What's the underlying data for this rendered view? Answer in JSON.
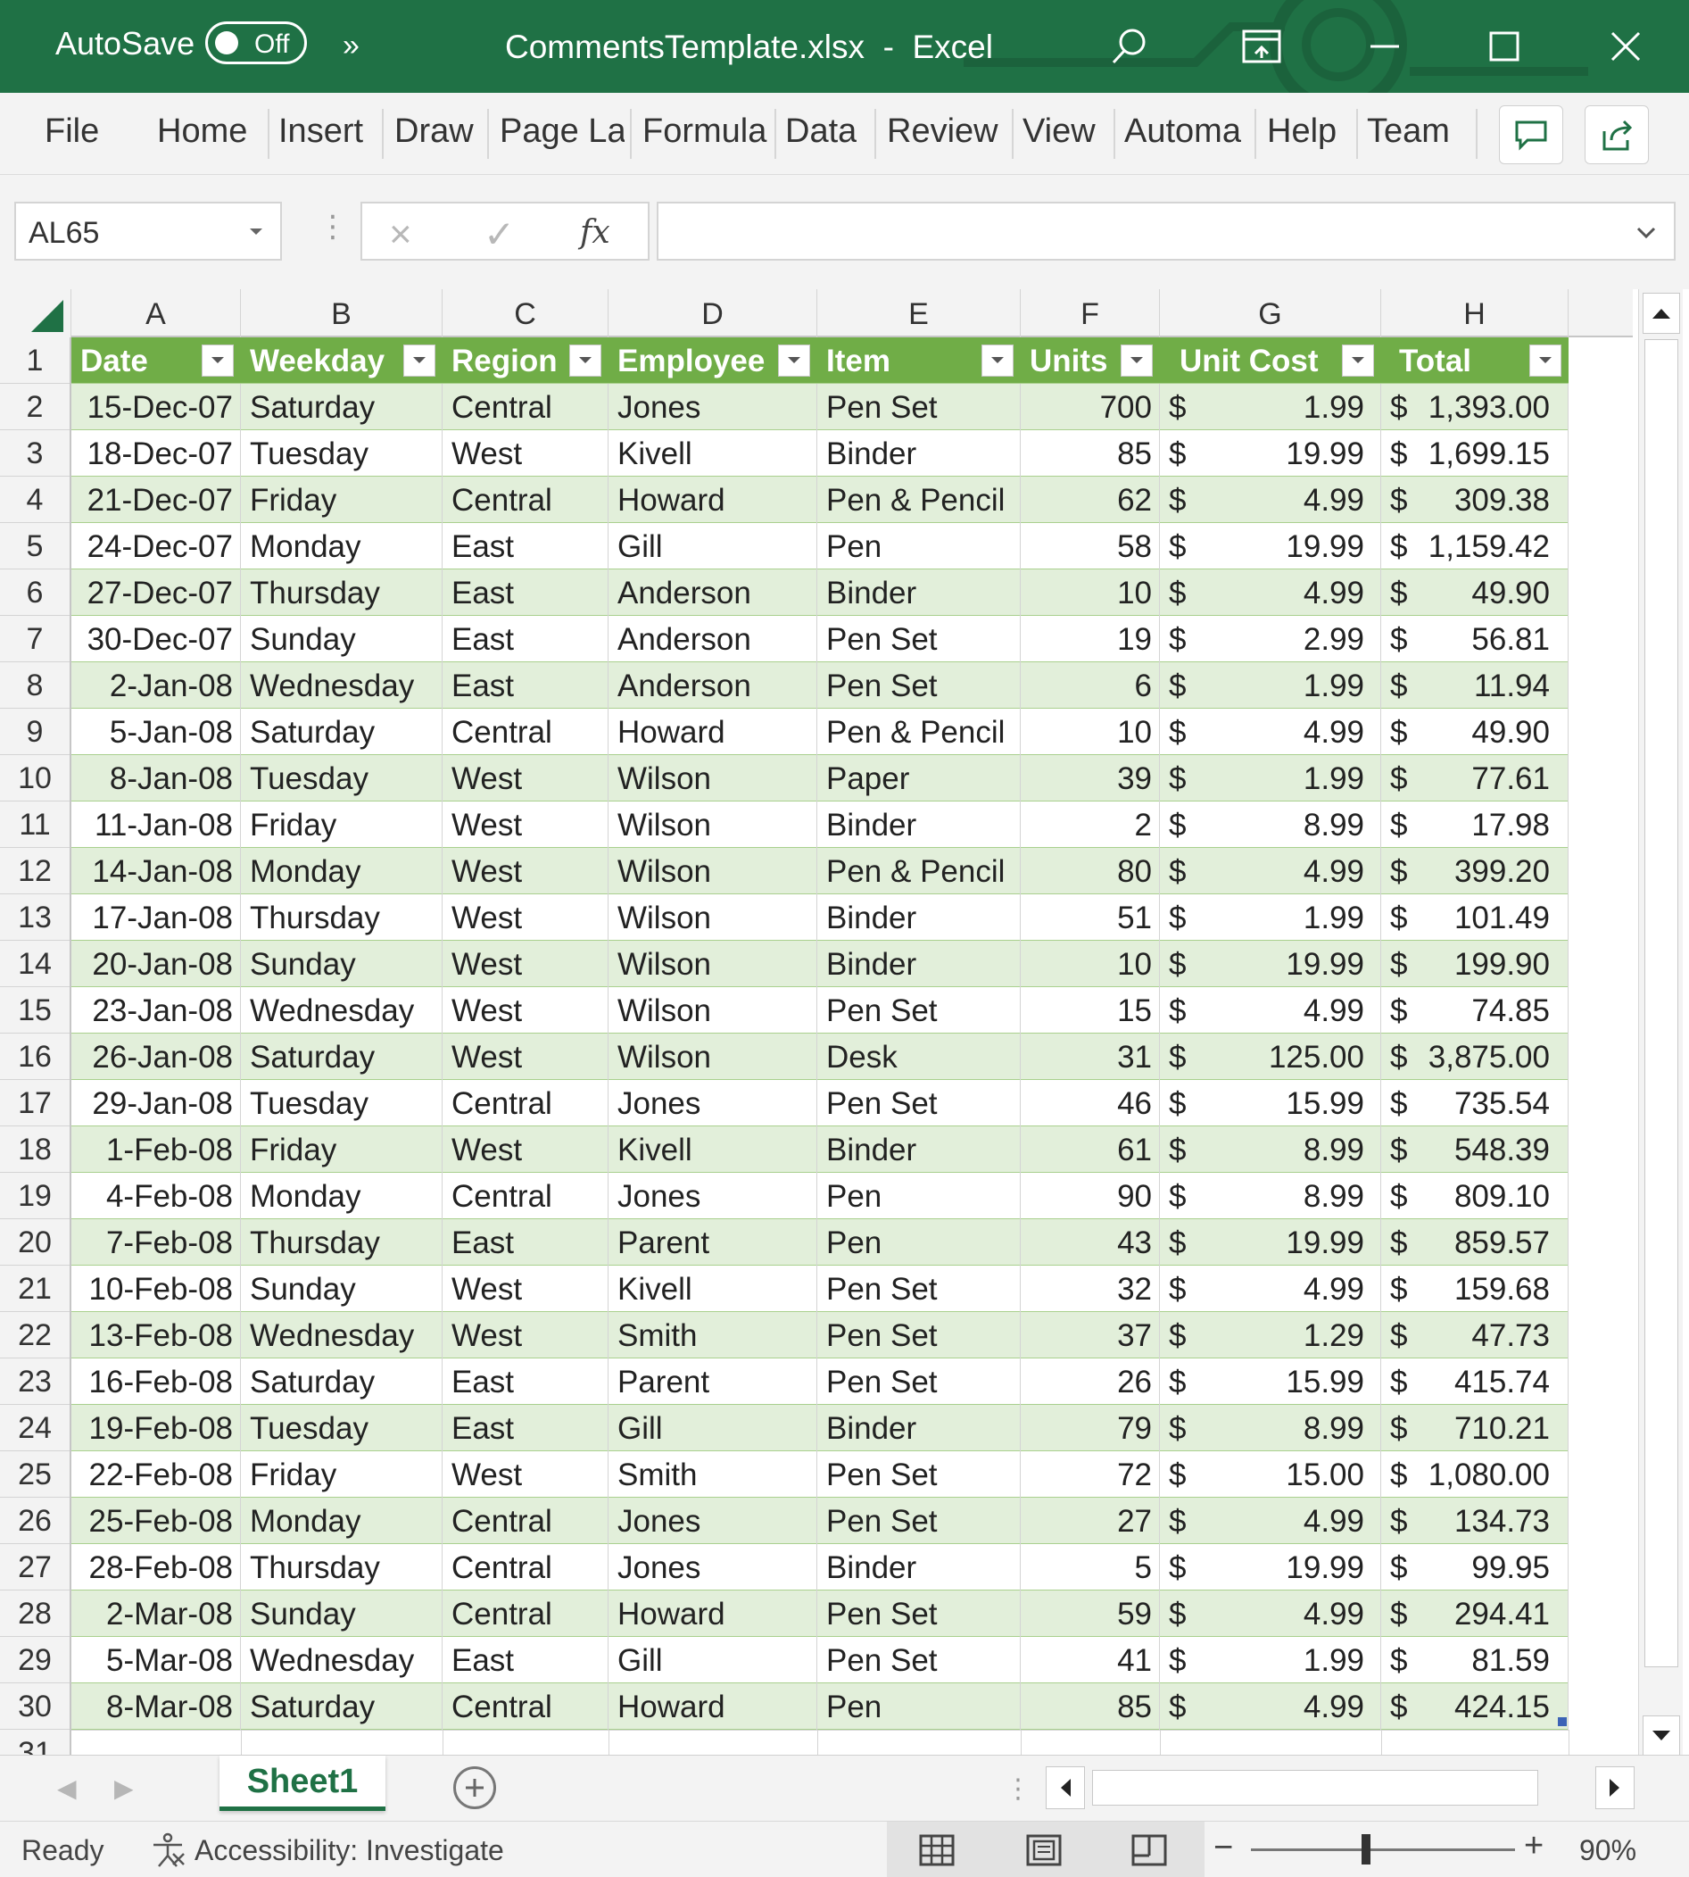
{
  "titlebar": {
    "autosave_label": "AutoSave",
    "autosave_state": "Off",
    "more_chevron": "»",
    "document_title": "CommentsTemplate.xlsx  -  Excel",
    "color": "#1f7145"
  },
  "ribbon": {
    "tabs": [
      "File",
      "Home",
      "Insert",
      "Draw",
      "Page La",
      "Formula",
      "Data",
      "Review",
      "View",
      "Automa",
      "Help",
      "Team"
    ],
    "comment_button_icon": "comment-icon",
    "share_button_icon": "share-icon"
  },
  "formula_bar": {
    "name_box": "AL65",
    "cancel_icon": "×",
    "enter_icon": "✓",
    "fx_label": "fx",
    "formula_value": ""
  },
  "grid": {
    "column_letters": [
      "A",
      "B",
      "C",
      "D",
      "E",
      "F",
      "G",
      "H"
    ],
    "row_numbers": [
      "1",
      "2",
      "3",
      "4",
      "5",
      "6",
      "7",
      "8",
      "9",
      "10",
      "11",
      "12",
      "13",
      "14",
      "15",
      "16",
      "17",
      "18",
      "19",
      "20",
      "21",
      "22",
      "23",
      "24",
      "25",
      "26",
      "27",
      "28",
      "29",
      "30",
      "31"
    ],
    "header_color": "#70ad47",
    "band_color": "#e2efda",
    "table_headers": [
      "Date",
      "Weekday",
      "Region",
      "Employee",
      "Item",
      "Units",
      "Unit Cost",
      "Total"
    ],
    "currency_symbol": "$",
    "rows": [
      [
        "15-Dec-07",
        "Saturday",
        "Central",
        "Jones",
        "Pen Set",
        "700",
        "1.99",
        "1,393.00"
      ],
      [
        "18-Dec-07",
        "Tuesday",
        "West",
        "Kivell",
        "Binder",
        "85",
        "19.99",
        "1,699.15"
      ],
      [
        "21-Dec-07",
        "Friday",
        "Central",
        "Howard",
        "Pen & Pencil",
        "62",
        "4.99",
        "309.38"
      ],
      [
        "24-Dec-07",
        "Monday",
        "East",
        "Gill",
        "Pen",
        "58",
        "19.99",
        "1,159.42"
      ],
      [
        "27-Dec-07",
        "Thursday",
        "East",
        "Anderson",
        "Binder",
        "10",
        "4.99",
        "49.90"
      ],
      [
        "30-Dec-07",
        "Sunday",
        "East",
        "Anderson",
        "Pen Set",
        "19",
        "2.99",
        "56.81"
      ],
      [
        "2-Jan-08",
        "Wednesday",
        "East",
        "Anderson",
        "Pen Set",
        "6",
        "1.99",
        "11.94"
      ],
      [
        "5-Jan-08",
        "Saturday",
        "Central",
        "Howard",
        "Pen & Pencil",
        "10",
        "4.99",
        "49.90"
      ],
      [
        "8-Jan-08",
        "Tuesday",
        "West",
        "Wilson",
        "Paper",
        "39",
        "1.99",
        "77.61"
      ],
      [
        "11-Jan-08",
        "Friday",
        "West",
        "Wilson",
        "Binder",
        "2",
        "8.99",
        "17.98"
      ],
      [
        "14-Jan-08",
        "Monday",
        "West",
        "Wilson",
        "Pen & Pencil",
        "80",
        "4.99",
        "399.20"
      ],
      [
        "17-Jan-08",
        "Thursday",
        "West",
        "Wilson",
        "Binder",
        "51",
        "1.99",
        "101.49"
      ],
      [
        "20-Jan-08",
        "Sunday",
        "West",
        "Wilson",
        "Binder",
        "10",
        "19.99",
        "199.90"
      ],
      [
        "23-Jan-08",
        "Wednesday",
        "West",
        "Wilson",
        "Pen Set",
        "15",
        "4.99",
        "74.85"
      ],
      [
        "26-Jan-08",
        "Saturday",
        "West",
        "Wilson",
        "Desk",
        "31",
        "125.00",
        "3,875.00"
      ],
      [
        "29-Jan-08",
        "Tuesday",
        "Central",
        "Jones",
        "Pen Set",
        "46",
        "15.99",
        "735.54"
      ],
      [
        "1-Feb-08",
        "Friday",
        "West",
        "Kivell",
        "Binder",
        "61",
        "8.99",
        "548.39"
      ],
      [
        "4-Feb-08",
        "Monday",
        "Central",
        "Jones",
        "Pen",
        "90",
        "8.99",
        "809.10"
      ],
      [
        "7-Feb-08",
        "Thursday",
        "East",
        "Parent",
        "Pen",
        "43",
        "19.99",
        "859.57"
      ],
      [
        "10-Feb-08",
        "Sunday",
        "West",
        "Kivell",
        "Pen Set",
        "32",
        "4.99",
        "159.68"
      ],
      [
        "13-Feb-08",
        "Wednesday",
        "West",
        "Smith",
        "Pen Set",
        "37",
        "1.29",
        "47.73"
      ],
      [
        "16-Feb-08",
        "Saturday",
        "East",
        "Parent",
        "Pen Set",
        "26",
        "15.99",
        "415.74"
      ],
      [
        "19-Feb-08",
        "Tuesday",
        "East",
        "Gill",
        "Binder",
        "79",
        "8.99",
        "710.21"
      ],
      [
        "22-Feb-08",
        "Friday",
        "West",
        "Smith",
        "Pen Set",
        "72",
        "15.00",
        "1,080.00"
      ],
      [
        "25-Feb-08",
        "Monday",
        "Central",
        "Jones",
        "Pen Set",
        "27",
        "4.99",
        "134.73"
      ],
      [
        "28-Feb-08",
        "Thursday",
        "Central",
        "Jones",
        "Binder",
        "5",
        "19.99",
        "99.95"
      ],
      [
        "2-Mar-08",
        "Sunday",
        "Central",
        "Howard",
        "Pen Set",
        "59",
        "4.99",
        "294.41"
      ],
      [
        "5-Mar-08",
        "Wednesday",
        "East",
        "Gill",
        "Pen Set",
        "41",
        "1.99",
        "81.59"
      ],
      [
        "8-Mar-08",
        "Saturday",
        "Central",
        "Howard",
        "Pen",
        "85",
        "4.99",
        "424.15"
      ]
    ]
  },
  "sheets": {
    "active": "Sheet1",
    "add_icon": "add-sheet-icon"
  },
  "statusbar": {
    "ready": "Ready",
    "accessibility": "Accessibility: Investigate",
    "zoom_minus": "−",
    "zoom_plus": "+",
    "zoom": "90%"
  }
}
